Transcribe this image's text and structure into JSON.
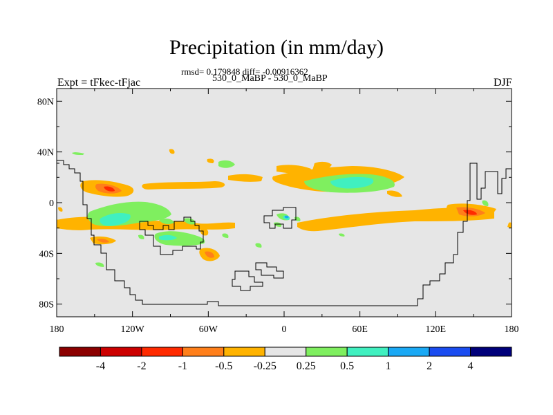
{
  "header": {
    "title": "Precipitation (in mm/day)",
    "stats": "rmsd= 0.179848 diff= -0.00916362",
    "subtitle": "530_0_MaBP - 530_0_MaBP",
    "left_label": "Expt = tFkec-tFjac",
    "right_label": "DJF"
  },
  "axes": {
    "y_ticks": [
      {
        "value": 80,
        "label": "80N"
      },
      {
        "value": 40,
        "label": "40N"
      },
      {
        "value": 0,
        "label": "0"
      },
      {
        "value": -40,
        "label": "40S"
      },
      {
        "value": -80,
        "label": "80S"
      }
    ],
    "x_ticks": [
      {
        "value": -180,
        "label": "180"
      },
      {
        "value": -120,
        "label": "120W"
      },
      {
        "value": -60,
        "label": "60W"
      },
      {
        "value": 0,
        "label": "0"
      },
      {
        "value": 60,
        "label": "60E"
      },
      {
        "value": 120,
        "label": "120E"
      },
      {
        "value": 180,
        "label": "180"
      }
    ],
    "lon_range": [
      -180,
      180
    ],
    "lat_range": [
      -90,
      90
    ]
  },
  "colorbar": {
    "colors": [
      "#8b0000",
      "#cc0000",
      "#ff2a00",
      "#ff7f1a",
      "#ffb300",
      "#e6e6e6",
      "#7fef5f",
      "#40f0c0",
      "#1aa9f5",
      "#1a4cf0",
      "#00007a"
    ],
    "labels": [
      "-4",
      "-2",
      "-1",
      "-0.5",
      "-0.25",
      "0.25",
      "0.5",
      "1",
      "2",
      "4"
    ]
  },
  "colors": {
    "ocean_background": "#e6e6e6",
    "coastline": "#000000"
  }
}
